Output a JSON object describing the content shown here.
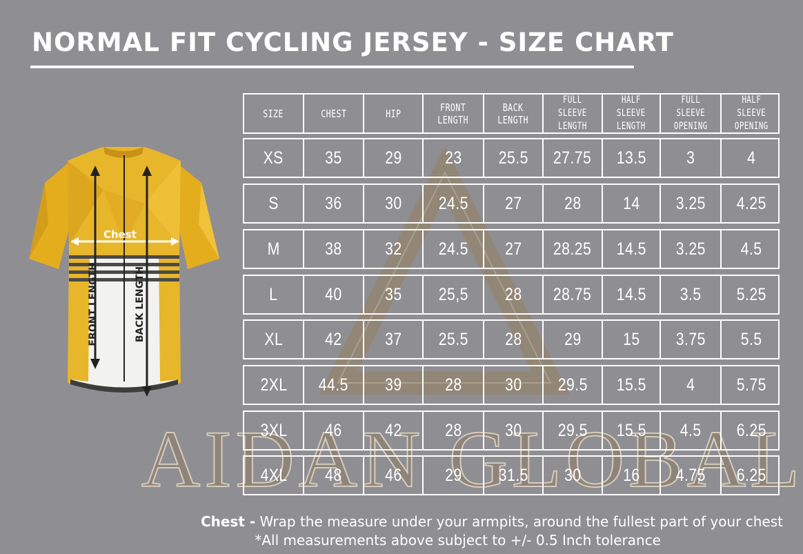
{
  "title": "NORMAL FIT CYCLING JERSEY - SIZE CHART",
  "watermark": "AIDAN GLOBAL",
  "jersey": {
    "chest_label": "Chest",
    "front_length_label": "FRONT LENGTH",
    "back_length_label": "BACK LENGTH",
    "colors": {
      "body": "#e8b62a",
      "stripe": "#4a4a48",
      "panel": "#f2f2f0"
    }
  },
  "table": {
    "headers": [
      "SIZE",
      "CHEST",
      "HIP",
      "FRONT\nLENGTH",
      "BACK\nLENGTH",
      "FULL\nSLEEVE\nLENGTH",
      "HALF\nSLEEVE\nLENGTH",
      "FULL\nSLEEVE\nOPENING",
      "HALF\nSLEEVE\nOPENING"
    ],
    "rows": [
      [
        "XS",
        "35",
        "29",
        "23",
        "25.5",
        "27.75",
        "13.5",
        "3",
        "4"
      ],
      [
        "S",
        "36",
        "30",
        "24.5",
        "27",
        "28",
        "14",
        "3.25",
        "4.25"
      ],
      [
        "M",
        "38",
        "32",
        "24.5",
        "27",
        "28.25",
        "14.5",
        "3.25",
        "4.5"
      ],
      [
        "L",
        "40",
        "35",
        "25,5",
        "28",
        "28.75",
        "14.5",
        "3.5",
        "5.25"
      ],
      [
        "XL",
        "42",
        "37",
        "25.5",
        "28",
        "29",
        "15",
        "3.75",
        "5.5"
      ],
      [
        "2XL",
        "44.5",
        "39",
        "28",
        "30",
        "29.5",
        "15.5",
        "4",
        "5.75"
      ],
      [
        "3XL",
        "46",
        "42",
        "28",
        "30",
        "29.5",
        "15.5",
        "4.5",
        "6.25"
      ],
      [
        "4XL",
        "48",
        "46",
        "29",
        "31.5",
        "30",
        "16",
        "4.75",
        "6.25"
      ]
    ]
  },
  "footnotes": {
    "chest_term": "Chest -",
    "chest_text": " Wrap the measure under your armpits, around the fullest part of your chest",
    "tolerance": "*All measurements above subject to +/- 0.5 Inch tolerance"
  }
}
